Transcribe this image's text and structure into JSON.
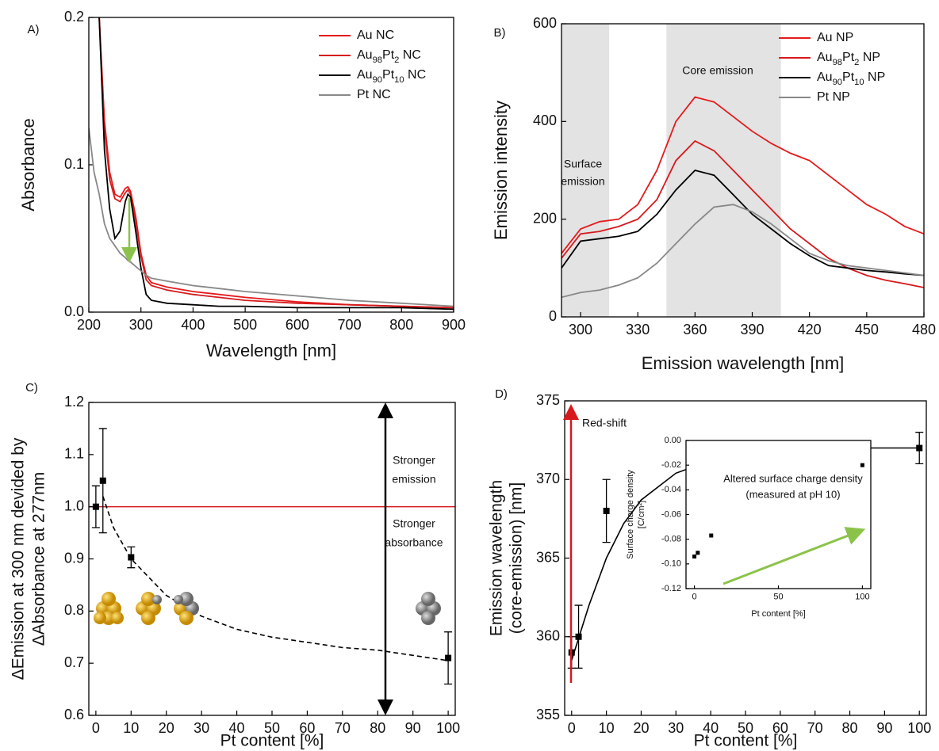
{
  "chart_data": [
    {
      "panel": "A)",
      "type": "line",
      "xlabel": "Wavelength [nm]",
      "ylabel": "Absorbance",
      "xlim": [
        200,
        900
      ],
      "ylim": [
        0,
        0.2
      ],
      "xticks": [
        200,
        300,
        400,
        500,
        600,
        700,
        800,
        900
      ],
      "yticks": [
        {
          "value": 0,
          "label": "0.0"
        },
        0.1,
        0.2
      ],
      "legend": "upper right",
      "x": [
        200,
        210,
        220,
        230,
        240,
        250,
        260,
        270,
        275,
        280,
        290,
        300,
        310,
        320,
        350,
        400,
        450,
        500,
        600,
        700,
        800,
        900
      ],
      "series": [
        {
          "name": "Au NC",
          "color": "#e41a1c",
          "values": [
            null,
            null,
            0.2,
            0.13,
            0.095,
            0.08,
            0.078,
            0.084,
            0.085,
            0.082,
            0.065,
            0.04,
            0.025,
            0.02,
            0.017,
            0.014,
            0.012,
            0.01,
            0.007,
            0.005,
            0.004,
            0.003
          ]
        },
        {
          "name": "Au98Pt2 NC",
          "color": "#d7191c",
          "values": [
            null,
            null,
            0.2,
            0.125,
            0.09,
            0.077,
            0.075,
            0.081,
            0.083,
            0.08,
            0.062,
            0.038,
            0.022,
            0.018,
            0.015,
            0.012,
            0.01,
            0.008,
            0.006,
            0.005,
            0.004,
            0.003
          ]
        },
        {
          "name": "Au90Pt10 NC",
          "color": "#000000",
          "values": [
            null,
            null,
            0.2,
            0.11,
            0.07,
            0.05,
            0.055,
            0.075,
            0.08,
            0.078,
            0.055,
            0.03,
            0.012,
            0.008,
            0.006,
            0.005,
            0.004,
            0.004,
            0.003,
            0.003,
            0.003,
            0.002
          ]
        },
        {
          "name": "Pt NC",
          "color": "#888888",
          "values": [
            0.125,
            0.095,
            0.08,
            0.06,
            0.05,
            0.045,
            0.04,
            0.037,
            0.035,
            0.034,
            0.031,
            0.028,
            0.025,
            0.023,
            0.021,
            0.018,
            0.016,
            0.014,
            0.011,
            0.008,
            0.006,
            0.004
          ]
        }
      ]
    },
    {
      "panel": "B)",
      "type": "line",
      "xlabel": "Emission wavelength [nm]",
      "ylabel": "Emission intensity",
      "xlim": [
        290,
        480
      ],
      "ylim": [
        0,
        600
      ],
      "xticks": [
        300,
        330,
        360,
        390,
        420,
        450,
        480
      ],
      "yticks": [
        0,
        200,
        400,
        600
      ],
      "legend": "upper right",
      "bands": [
        {
          "from": 290,
          "to": 315,
          "color": "#e3e3e3",
          "label_lines": [
            "Surface",
            "emission"
          ]
        },
        {
          "from": 345,
          "to": 405,
          "color": "#e3e3e3",
          "label_lines": [
            "Core emission"
          ]
        }
      ],
      "x": [
        290,
        300,
        310,
        320,
        330,
        340,
        350,
        360,
        370,
        380,
        390,
        400,
        410,
        420,
        430,
        440,
        450,
        460,
        470,
        480
      ],
      "series": [
        {
          "name": "Au NP",
          "color": "#e41a1c",
          "values": [
            130,
            180,
            195,
            200,
            230,
            300,
            400,
            450,
            440,
            410,
            380,
            355,
            335,
            320,
            290,
            260,
            230,
            210,
            185,
            170
          ]
        },
        {
          "name": "Au98Pt2 NP",
          "color": "#d7191c",
          "values": [
            120,
            170,
            175,
            185,
            200,
            240,
            320,
            360,
            340,
            300,
            260,
            220,
            180,
            150,
            120,
            100,
            85,
            75,
            68,
            60
          ]
        },
        {
          "name": "Au90Pt10 NP",
          "color": "#000000",
          "values": [
            100,
            155,
            160,
            165,
            175,
            210,
            260,
            300,
            290,
            250,
            210,
            180,
            150,
            125,
            105,
            100,
            95,
            92,
            88,
            85
          ]
        },
        {
          "name": "Pt NP",
          "color": "#888888",
          "values": [
            40,
            50,
            55,
            65,
            80,
            110,
            150,
            190,
            225,
            230,
            215,
            190,
            160,
            130,
            115,
            105,
            100,
            95,
            90,
            85
          ]
        }
      ]
    },
    {
      "panel": "C)",
      "type": "scatter",
      "xlabel": "Pt content [%]",
      "ylabel_lines": [
        "ΔEmission at 300 nm devided by",
        "ΔAbsorbance at 277nm"
      ],
      "xlim": [
        -2,
        102
      ],
      "ylim": [
        0.6,
        1.2
      ],
      "xticks": [
        0,
        10,
        20,
        30,
        40,
        50,
        60,
        70,
        80,
        90,
        100
      ],
      "yticks": [
        0.6,
        0.7,
        0.8,
        0.9,
        {
          "value": 1,
          "label": "1.0"
        },
        1.1,
        1.2
      ],
      "color": "#000000",
      "x": [
        0,
        2,
        10,
        100
      ],
      "values": [
        1.0,
        1.05,
        0.903,
        0.71
      ],
      "errors": [
        0.04,
        0.1,
        0.02,
        0.05
      ],
      "fit": {
        "style": "dashed",
        "color": "#000000",
        "x": [
          2,
          5,
          10,
          20,
          30,
          40,
          50,
          60,
          70,
          80,
          90,
          100
        ],
        "values": [
          1.02,
          0.96,
          0.9,
          0.83,
          0.79,
          0.765,
          0.75,
          0.74,
          0.73,
          0.725,
          0.715,
          0.705
        ]
      },
      "reference": {
        "value": 1.0,
        "color": "#d7191c"
      },
      "annotations": [
        {
          "lines": [
            "Stronger",
            "emission"
          ],
          "color": "#d7191c"
        },
        {
          "lines": [
            "Stronger",
            "absorbance"
          ],
          "color": "#d7191c"
        }
      ]
    },
    {
      "panel": "D)",
      "type": "scatter",
      "xlabel": "Pt content [%]",
      "ylabel_lines": [
        "Emission wavelength",
        "(core-emission) [nm]"
      ],
      "xlim": [
        -2,
        102
      ],
      "ylim": [
        355,
        375
      ],
      "xticks": [
        0,
        10,
        20,
        30,
        40,
        50,
        60,
        70,
        80,
        90,
        100
      ],
      "yticks": [
        355,
        360,
        365,
        370,
        375
      ],
      "color": "#000000",
      "x": [
        0,
        2,
        10,
        100
      ],
      "values": [
        359,
        360,
        368,
        372
      ],
      "errors": [
        1,
        2,
        2,
        1
      ],
      "fit": {
        "style": "solid",
        "color": "#000000",
        "x": [
          0,
          5,
          10,
          15,
          20,
          30,
          40,
          50,
          60,
          70,
          80,
          90,
          100
        ],
        "values": [
          358.5,
          362,
          365,
          367.2,
          368.7,
          370.4,
          371.2,
          371.6,
          371.8,
          371.9,
          372,
          372,
          372
        ]
      },
      "annotations": [
        {
          "lines": [
            "Red-shift"
          ],
          "color": "#d7191c"
        }
      ]
    },
    {
      "type": "scatter",
      "xlabel": "Pt content [%]",
      "ylabel_lines": [
        "Surface charge density",
        "[C/cm²]"
      ],
      "xlim": [
        -5,
        105
      ],
      "ylim": [
        -0.12,
        0
      ],
      "xticks": [
        0,
        50,
        100
      ],
      "yticks": [
        -0.12,
        {
          "value": -0.1,
          "label": "-0.10"
        },
        -0.08,
        -0.06,
        -0.04,
        -0.02,
        {
          "value": 0,
          "label": "0.00"
        }
      ],
      "color": "#000000",
      "x": [
        0,
        2,
        10,
        100
      ],
      "values": [
        -0.094,
        -0.091,
        -0.077,
        -0.02
      ],
      "annotations": [
        {
          "lines": [
            "Altered surface charge density",
            "(measured at pH 10)"
          ],
          "color": "#8bc34a"
        }
      ]
    }
  ]
}
